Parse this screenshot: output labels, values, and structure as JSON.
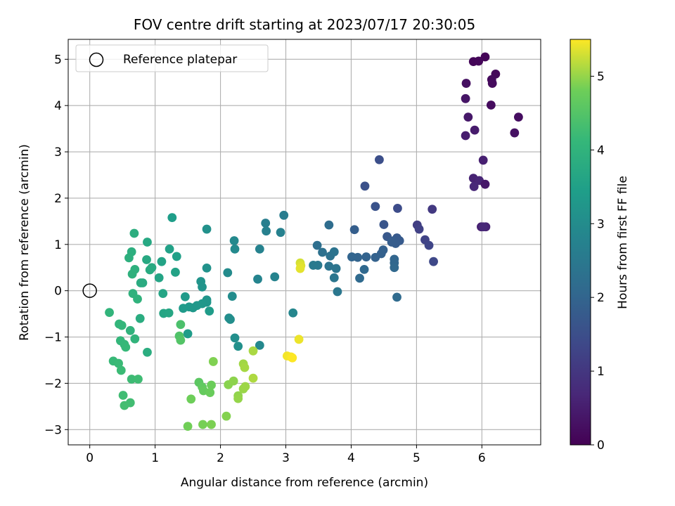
{
  "chart_data": {
    "type": "scatter",
    "title": "FOV centre drift starting at 2023/07/17 20:30:05",
    "xlabel": "Angular distance from reference (arcmin)",
    "ylabel": "Rotation from reference (arcmin)",
    "xlim": [
      -0.33,
      6.9
    ],
    "ylim": [
      -3.33,
      5.43
    ],
    "xticks": [
      0,
      1,
      2,
      3,
      4,
      5,
      6
    ],
    "yticks": [
      -3,
      -2,
      -1,
      0,
      1,
      2,
      3,
      4,
      5
    ],
    "grid": true,
    "legend": {
      "placement": "top-left",
      "entries": [
        {
          "label": "Reference platepar",
          "marker": "open-circle"
        }
      ]
    },
    "reference_point": {
      "x": 0,
      "y": 0
    },
    "colorbar": {
      "label": "Hours from first FF file",
      "colormap": "viridis",
      "range": [
        0,
        5.5
      ],
      "ticks": [
        0,
        1,
        2,
        3,
        4,
        5
      ]
    },
    "points": [
      {
        "x": 6.05,
        "y": 5.05,
        "c": 0.05
      },
      {
        "x": 5.87,
        "y": 4.95,
        "c": 0.08
      },
      {
        "x": 5.95,
        "y": 4.96,
        "c": 0.1
      },
      {
        "x": 6.21,
        "y": 4.68,
        "c": 0.12
      },
      {
        "x": 6.15,
        "y": 4.56,
        "c": 0.15
      },
      {
        "x": 6.16,
        "y": 4.48,
        "c": 0.18
      },
      {
        "x": 5.76,
        "y": 4.48,
        "c": 0.25
      },
      {
        "x": 6.14,
        "y": 4.01,
        "c": 0.2
      },
      {
        "x": 6.56,
        "y": 3.75,
        "c": 0.22
      },
      {
        "x": 6.5,
        "y": 3.41,
        "c": 0.28
      },
      {
        "x": 5.75,
        "y": 4.15,
        "c": 0.35
      },
      {
        "x": 5.79,
        "y": 3.75,
        "c": 0.4
      },
      {
        "x": 5.89,
        "y": 3.47,
        "c": 0.45
      },
      {
        "x": 5.75,
        "y": 3.35,
        "c": 0.5
      },
      {
        "x": 6.02,
        "y": 2.82,
        "c": 0.55
      },
      {
        "x": 5.87,
        "y": 2.43,
        "c": 0.6
      },
      {
        "x": 5.96,
        "y": 2.38,
        "c": 0.65
      },
      {
        "x": 5.88,
        "y": 2.25,
        "c": 0.68
      },
      {
        "x": 6.05,
        "y": 2.3,
        "c": 0.4
      },
      {
        "x": 5.99,
        "y": 1.38,
        "c": 0.55
      },
      {
        "x": 6.06,
        "y": 1.38,
        "c": 0.62
      },
      {
        "x": 6.02,
        "y": 1.38,
        "c": 0.7
      },
      {
        "x": 5.24,
        "y": 1.76,
        "c": 1.05
      },
      {
        "x": 5.01,
        "y": 1.42,
        "c": 1.15
      },
      {
        "x": 5.04,
        "y": 1.33,
        "c": 1.2
      },
      {
        "x": 5.13,
        "y": 1.1,
        "c": 1.25
      },
      {
        "x": 5.19,
        "y": 0.98,
        "c": 1.3
      },
      {
        "x": 5.26,
        "y": 0.63,
        "c": 1.35
      },
      {
        "x": 4.71,
        "y": 1.78,
        "c": 1.45
      },
      {
        "x": 4.43,
        "y": 2.83,
        "c": 1.5
      },
      {
        "x": 4.21,
        "y": 2.26,
        "c": 1.55
      },
      {
        "x": 4.37,
        "y": 1.82,
        "c": 1.6
      },
      {
        "x": 4.5,
        "y": 1.43,
        "c": 1.65
      },
      {
        "x": 4.55,
        "y": 1.17,
        "c": 1.7
      },
      {
        "x": 4.7,
        "y": 1.14,
        "c": 1.72
      },
      {
        "x": 4.74,
        "y": 1.08,
        "c": 1.75
      },
      {
        "x": 4.65,
        "y": 1.08,
        "c": 1.78
      },
      {
        "x": 4.68,
        "y": 1.02,
        "c": 1.8
      },
      {
        "x": 4.62,
        "y": 1.05,
        "c": 1.82
      },
      {
        "x": 4.05,
        "y": 1.32,
        "c": 1.85
      },
      {
        "x": 4.49,
        "y": 0.88,
        "c": 1.88
      },
      {
        "x": 4.46,
        "y": 0.8,
        "c": 1.9
      },
      {
        "x": 4.37,
        "y": 0.72,
        "c": 1.92
      },
      {
        "x": 4.23,
        "y": 0.73,
        "c": 1.95
      },
      {
        "x": 4.1,
        "y": 0.72,
        "c": 1.98
      },
      {
        "x": 4.01,
        "y": 0.73,
        "c": 2.0
      },
      {
        "x": 4.66,
        "y": 0.68,
        "c": 2.02
      },
      {
        "x": 4.66,
        "y": 0.6,
        "c": 2.05
      },
      {
        "x": 4.66,
        "y": 0.5,
        "c": 2.08
      },
      {
        "x": 4.2,
        "y": 0.46,
        "c": 2.1
      },
      {
        "x": 4.13,
        "y": 0.27,
        "c": 2.12
      },
      {
        "x": 4.7,
        "y": -0.14,
        "c": 2.15
      },
      {
        "x": 3.66,
        "y": 1.42,
        "c": 2.2
      },
      {
        "x": 3.48,
        "y": 0.98,
        "c": 2.25
      },
      {
        "x": 3.56,
        "y": 0.83,
        "c": 2.3
      },
      {
        "x": 3.68,
        "y": 0.75,
        "c": 2.32
      },
      {
        "x": 3.74,
        "y": 0.84,
        "c": 2.35
      },
      {
        "x": 3.66,
        "y": 0.53,
        "c": 2.38
      },
      {
        "x": 3.77,
        "y": 0.48,
        "c": 2.4
      },
      {
        "x": 3.74,
        "y": 0.28,
        "c": 2.42
      },
      {
        "x": 3.79,
        "y": -0.02,
        "c": 2.45
      },
      {
        "x": 3.49,
        "y": 0.55,
        "c": 2.5
      },
      {
        "x": 3.42,
        "y": 0.55,
        "c": 2.55
      },
      {
        "x": 2.97,
        "y": 1.63,
        "c": 2.6
      },
      {
        "x": 2.69,
        "y": 1.46,
        "c": 2.65
      },
      {
        "x": 2.7,
        "y": 1.29,
        "c": 2.7
      },
      {
        "x": 2.92,
        "y": 1.26,
        "c": 2.72
      },
      {
        "x": 2.6,
        "y": 0.9,
        "c": 2.75
      },
      {
        "x": 2.83,
        "y": 0.3,
        "c": 2.78
      },
      {
        "x": 2.57,
        "y": 0.25,
        "c": 2.8
      },
      {
        "x": 3.11,
        "y": -0.48,
        "c": 2.85
      },
      {
        "x": 2.6,
        "y": -1.18,
        "c": 2.9
      },
      {
        "x": 2.21,
        "y": 1.08,
        "c": 2.92
      },
      {
        "x": 2.22,
        "y": 0.9,
        "c": 2.95
      },
      {
        "x": 2.11,
        "y": 0.39,
        "c": 2.98
      },
      {
        "x": 2.18,
        "y": -0.12,
        "c": 3.0
      },
      {
        "x": 2.13,
        "y": -0.59,
        "c": 3.02
      },
      {
        "x": 2.15,
        "y": -0.62,
        "c": 3.05
      },
      {
        "x": 2.22,
        "y": -1.02,
        "c": 3.08
      },
      {
        "x": 2.27,
        "y": -1.2,
        "c": 3.1
      },
      {
        "x": 1.79,
        "y": 1.33,
        "c": 3.12
      },
      {
        "x": 1.79,
        "y": 0.49,
        "c": 3.15
      },
      {
        "x": 1.7,
        "y": 0.2,
        "c": 3.18
      },
      {
        "x": 1.72,
        "y": 0.08,
        "c": 3.2
      },
      {
        "x": 1.79,
        "y": -0.2,
        "c": 3.22
      },
      {
        "x": 1.79,
        "y": -0.25,
        "c": 3.24
      },
      {
        "x": 1.72,
        "y": -0.28,
        "c": 3.26
      },
      {
        "x": 1.64,
        "y": -0.32,
        "c": 3.28
      },
      {
        "x": 1.58,
        "y": -0.37,
        "c": 3.3
      },
      {
        "x": 1.52,
        "y": -0.35,
        "c": 3.32
      },
      {
        "x": 1.46,
        "y": -0.13,
        "c": 3.34
      },
      {
        "x": 1.43,
        "y": -0.38,
        "c": 3.36
      },
      {
        "x": 1.83,
        "y": -0.44,
        "c": 3.38
      },
      {
        "x": 1.5,
        "y": -0.93,
        "c": 3.4
      },
      {
        "x": 1.26,
        "y": 1.58,
        "c": 3.45
      },
      {
        "x": 1.33,
        "y": 0.74,
        "c": 3.5
      },
      {
        "x": 1.22,
        "y": 0.9,
        "c": 3.52
      },
      {
        "x": 1.31,
        "y": 0.4,
        "c": 3.55
      },
      {
        "x": 1.1,
        "y": 0.63,
        "c": 3.58
      },
      {
        "x": 1.06,
        "y": 0.28,
        "c": 3.6
      },
      {
        "x": 1.12,
        "y": -0.06,
        "c": 3.62
      },
      {
        "x": 1.13,
        "y": -0.49,
        "c": 3.64
      },
      {
        "x": 1.21,
        "y": -0.48,
        "c": 3.66
      },
      {
        "x": 0.88,
        "y": 1.05,
        "c": 3.7
      },
      {
        "x": 0.87,
        "y": 0.67,
        "c": 3.72
      },
      {
        "x": 0.95,
        "y": 0.5,
        "c": 3.74
      },
      {
        "x": 0.92,
        "y": 0.45,
        "c": 3.76
      },
      {
        "x": 0.81,
        "y": 0.17,
        "c": 3.78
      },
      {
        "x": 0.78,
        "y": 0.17,
        "c": 3.8
      },
      {
        "x": 0.77,
        "y": -0.6,
        "c": 3.82
      },
      {
        "x": 0.88,
        "y": -1.33,
        "c": 3.84
      },
      {
        "x": 0.68,
        "y": 1.24,
        "c": 3.86
      },
      {
        "x": 0.64,
        "y": 0.84,
        "c": 3.88
      },
      {
        "x": 0.6,
        "y": 0.71,
        "c": 3.9
      },
      {
        "x": 0.69,
        "y": 0.46,
        "c": 3.92
      },
      {
        "x": 0.65,
        "y": 0.36,
        "c": 3.94
      },
      {
        "x": 0.66,
        "y": -0.06,
        "c": 3.96
      },
      {
        "x": 0.73,
        "y": -0.18,
        "c": 3.98
      },
      {
        "x": 0.62,
        "y": -0.86,
        "c": 4.0
      },
      {
        "x": 0.69,
        "y": -1.04,
        "c": 4.02
      },
      {
        "x": 0.3,
        "y": -0.47,
        "c": 4.04
      },
      {
        "x": 0.45,
        "y": -0.72,
        "c": 4.06
      },
      {
        "x": 0.49,
        "y": -0.75,
        "c": 4.08
      },
      {
        "x": 0.47,
        "y": -1.08,
        "c": 4.1
      },
      {
        "x": 0.53,
        "y": -1.16,
        "c": 4.12
      },
      {
        "x": 0.55,
        "y": -1.22,
        "c": 4.14
      },
      {
        "x": 0.36,
        "y": -1.52,
        "c": 4.16
      },
      {
        "x": 0.44,
        "y": -1.57,
        "c": 4.18
      },
      {
        "x": 0.48,
        "y": -1.72,
        "c": 4.2
      },
      {
        "x": 0.64,
        "y": -1.91,
        "c": 4.22
      },
      {
        "x": 0.74,
        "y": -1.91,
        "c": 4.24
      },
      {
        "x": 0.51,
        "y": -2.26,
        "c": 4.26
      },
      {
        "x": 0.62,
        "y": -2.42,
        "c": 4.28
      },
      {
        "x": 0.53,
        "y": -2.48,
        "c": 4.3
      },
      {
        "x": 1.39,
        "y": -0.73,
        "c": 4.4
      },
      {
        "x": 1.37,
        "y": -0.98,
        "c": 4.45
      },
      {
        "x": 1.39,
        "y": -1.07,
        "c": 4.5
      },
      {
        "x": 1.67,
        "y": -1.98,
        "c": 4.6
      },
      {
        "x": 1.72,
        "y": -2.08,
        "c": 4.65
      },
      {
        "x": 1.74,
        "y": -2.16,
        "c": 4.7
      },
      {
        "x": 1.84,
        "y": -2.2,
        "c": 4.75
      },
      {
        "x": 1.86,
        "y": -2.04,
        "c": 4.78
      },
      {
        "x": 1.55,
        "y": -2.34,
        "c": 4.8
      },
      {
        "x": 1.5,
        "y": -2.93,
        "c": 4.82
      },
      {
        "x": 1.73,
        "y": -2.89,
        "c": 4.85
      },
      {
        "x": 1.86,
        "y": -2.89,
        "c": 4.88
      },
      {
        "x": 1.89,
        "y": -1.53,
        "c": 4.9
      },
      {
        "x": 2.09,
        "y": -2.71,
        "c": 4.92
      },
      {
        "x": 2.12,
        "y": -2.03,
        "c": 4.94
      },
      {
        "x": 2.2,
        "y": -1.95,
        "c": 4.96
      },
      {
        "x": 2.27,
        "y": -2.27,
        "c": 4.98
      },
      {
        "x": 2.27,
        "y": -2.33,
        "c": 5.0
      },
      {
        "x": 2.35,
        "y": -2.12,
        "c": 5.02
      },
      {
        "x": 2.38,
        "y": -2.07,
        "c": 5.04
      },
      {
        "x": 2.35,
        "y": -1.58,
        "c": 5.06
      },
      {
        "x": 2.37,
        "y": -1.66,
        "c": 5.08
      },
      {
        "x": 2.5,
        "y": -1.3,
        "c": 5.1
      },
      {
        "x": 2.5,
        "y": -1.89,
        "c": 5.12
      },
      {
        "x": 3.22,
        "y": 0.6,
        "c": 5.3
      },
      {
        "x": 3.23,
        "y": 0.54,
        "c": 5.35
      },
      {
        "x": 3.22,
        "y": 0.48,
        "c": 5.38
      },
      {
        "x": 3.2,
        "y": -1.05,
        "c": 5.42
      },
      {
        "x": 3.02,
        "y": -1.41,
        "c": 5.45
      },
      {
        "x": 3.08,
        "y": -1.43,
        "c": 5.47
      },
      {
        "x": 3.1,
        "y": -1.45,
        "c": 5.5
      }
    ]
  }
}
